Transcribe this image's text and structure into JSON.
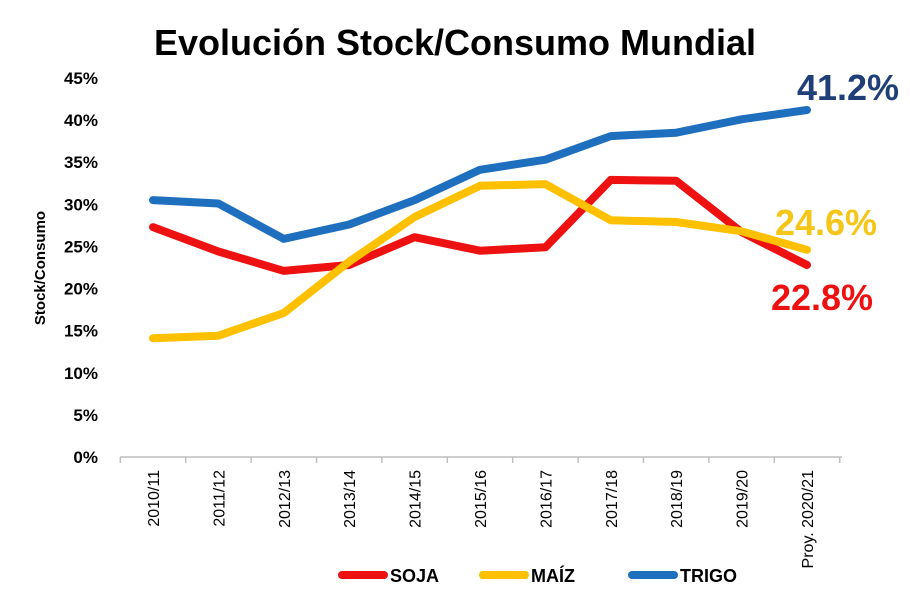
{
  "chart_data": {
    "type": "line",
    "title": "Evolución Stock/Consumo Mundial",
    "xlabel": "",
    "ylabel": "Stock/Consumo",
    "ylim": [
      0,
      45
    ],
    "yticks": [
      "0%",
      "5%",
      "10%",
      "15%",
      "20%",
      "25%",
      "30%",
      "35%",
      "40%",
      "45%"
    ],
    "ytick_values": [
      0,
      5,
      10,
      15,
      20,
      25,
      30,
      35,
      40,
      45
    ],
    "categories": [
      "2010/11",
      "2011/12",
      "2012/13",
      "2013/14",
      "2014/15",
      "2015/16",
      "2016/17",
      "2017/18",
      "2018/19",
      "2019/20",
      "Proy. 2020/21"
    ],
    "legend_position": "bottom",
    "series": [
      {
        "name": "SOJA",
        "color": "#ee1111",
        "values": [
          27.3,
          24.4,
          22.1,
          22.8,
          26.1,
          24.5,
          24.9,
          32.9,
          32.8,
          26.7,
          22.8
        ],
        "end_label": "22.8%"
      },
      {
        "name": "MAÍZ",
        "color": "#ffc000",
        "values": [
          14.1,
          14.4,
          17.1,
          23.2,
          28.5,
          32.2,
          32.4,
          28.1,
          27.9,
          26.8,
          24.6
        ],
        "end_label": "24.6%"
      },
      {
        "name": "TRIGO",
        "color": "#1f6fbf",
        "values": [
          30.5,
          30.1,
          25.9,
          27.6,
          30.5,
          34.1,
          35.3,
          38.1,
          38.5,
          40.1,
          41.2
        ],
        "end_label": "41.2%"
      }
    ],
    "end_label_colors": {
      "SOJA": "#ee1111",
      "MAÍZ": "#f5c518",
      "TRIGO": "#1f3f77"
    }
  }
}
